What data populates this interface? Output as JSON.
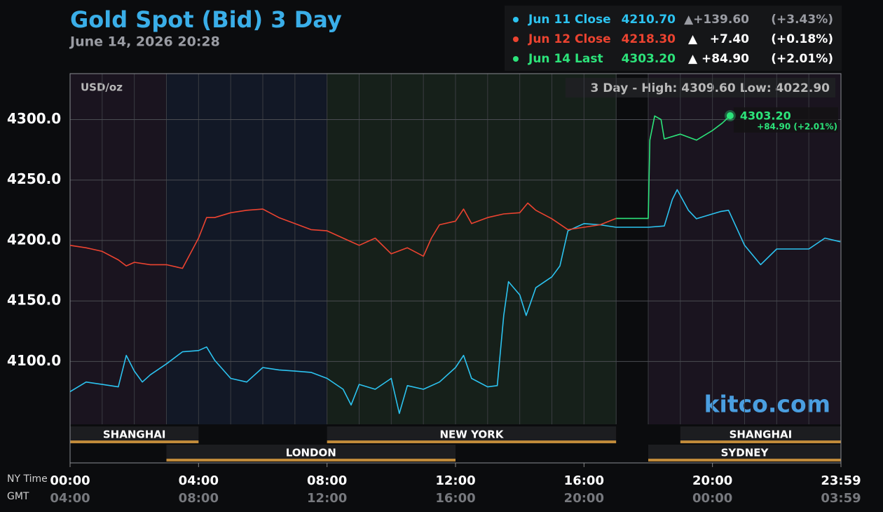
{
  "chart_data": {
    "type": "line",
    "title": "Gold Spot (Bid) 3 Day",
    "subtitle": "June 14, 2026 20:28",
    "unit_label": "USD/oz",
    "range_note": "3 Day - High: 4309.60  Low: 4022.90",
    "last_label": "4303.20",
    "last_change_label": "+84.90 (+2.01%)",
    "watermark": "kitco.com",
    "x_axis_label": "NY Time",
    "x2_axis_label": "GMT",
    "xlim": [
      0,
      24
    ],
    "xticks": [
      {
        "value": 0,
        "label": "00:00"
      },
      {
        "value": 4,
        "label": "04:00"
      },
      {
        "value": 8,
        "label": "08:00"
      },
      {
        "value": 12,
        "label": "12:00"
      },
      {
        "value": 16,
        "label": "16:00"
      },
      {
        "value": 20,
        "label": "20:00"
      },
      {
        "value": 24,
        "label": "23:59"
      }
    ],
    "x2ticks": [
      {
        "value": 0,
        "label": "04:00"
      },
      {
        "value": 4,
        "label": "08:00"
      },
      {
        "value": 8,
        "label": "12:00"
      },
      {
        "value": 12,
        "label": "16:00"
      },
      {
        "value": 16,
        "label": "20:00"
      },
      {
        "value": 20,
        "label": "00:00"
      },
      {
        "value": 24,
        "label": "03:59"
      }
    ],
    "ylim": [
      4048,
      4338
    ],
    "yticks": [
      {
        "value": 4100,
        "label": "4100.0"
      },
      {
        "value": 4150,
        "label": "4150.0"
      },
      {
        "value": 4200,
        "label": "4200.0"
      },
      {
        "value": 4250,
        "label": "4250.0"
      },
      {
        "value": 4300,
        "label": "4300.0"
      }
    ],
    "grid": true,
    "sessions_top": [
      {
        "name": "SHANGHAI",
        "start": 0,
        "end": 4
      },
      {
        "name": "NEW YORK",
        "start": 8,
        "end": 17
      },
      {
        "name": "SHANGHAI",
        "start": 19,
        "end": 24
      }
    ],
    "sessions_bottom": [
      {
        "name": "LONDON",
        "start": 3,
        "end": 12
      },
      {
        "name": "SYDNEY",
        "start": 18,
        "end": 24
      }
    ],
    "series": [
      {
        "name": "Jun 11 Close",
        "color": "#2cc3f0",
        "legend_value": "4210.70",
        "change": "▲+139.60",
        "pct": "(+3.43%)",
        "x": [
          0,
          0.5,
          1,
          1.5,
          1.75,
          2,
          2.25,
          2.5,
          3,
          3.5,
          4,
          4.25,
          4.5,
          5,
          5.5,
          6,
          6.5,
          7,
          7.5,
          8,
          8.5,
          8.75,
          9,
          9.5,
          10,
          10.25,
          10.5,
          11,
          11.5,
          12,
          12.25,
          12.5,
          13,
          13.3,
          13.5,
          13.65,
          14,
          14.2,
          14.5,
          15,
          15.25,
          15.5,
          16,
          16.5,
          17,
          18,
          18.5,
          18.75,
          18.9,
          19.25,
          19.5,
          20,
          20.25,
          20.5,
          21,
          21.5,
          22,
          22.5,
          23,
          23.5,
          23.98
        ],
        "values": [
          4075,
          4083,
          4081,
          4079,
          4105,
          4092,
          4083,
          4089,
          4098,
          4108,
          4109,
          4112,
          4101,
          4086,
          4083,
          4095,
          4093,
          4092,
          4091,
          4086,
          4077,
          4064,
          4081,
          4077,
          4086,
          4057,
          4080,
          4077,
          4083,
          4095,
          4105,
          4086,
          4079,
          4080,
          4138,
          4166,
          4155,
          4138,
          4161,
          4170,
          4179,
          4208,
          4214,
          4213,
          4211,
          4211,
          4212,
          4234,
          4242,
          4225,
          4218,
          4222,
          4224,
          4225,
          4196,
          4180,
          4193,
          4193,
          4193,
          4202,
          4199
        ]
      },
      {
        "name": "Jun 12 Close",
        "color": "#ec4330",
        "legend_value": "4218.30",
        "change": "▲   +7.40",
        "pct": "(+0.18%)",
        "x": [
          0,
          0.5,
          1,
          1.5,
          1.75,
          2,
          2.5,
          3,
          3.5,
          4,
          4.25,
          4.5,
          5,
          5.5,
          6,
          6.5,
          7,
          7.5,
          8,
          8.5,
          9,
          9.5,
          10,
          10.5,
          11,
          11.25,
          11.5,
          12,
          12.25,
          12.5,
          13,
          13.5,
          14,
          14.25,
          14.5,
          15,
          15.5,
          16,
          16.5,
          17
        ],
        "values": [
          4196,
          4194,
          4191,
          4184,
          4179,
          4182,
          4180,
          4180,
          4177,
          4202,
          4219,
          4219,
          4223,
          4225,
          4226,
          4219,
          4214,
          4209,
          4208,
          4202,
          4196,
          4202,
          4189,
          4194,
          4187,
          4202,
          4213,
          4216,
          4226,
          4214,
          4219,
          4222,
          4223,
          4231,
          4225,
          4218,
          4209,
          4211,
          4213,
          4218.3
        ]
      },
      {
        "name": "Jun 14 Last",
        "color": "#2ce37a",
        "legend_value": "4303.20",
        "change": "▲ +84.90",
        "pct": "(+2.01%)",
        "x": [
          17,
          18,
          18.05,
          18.2,
          18.4,
          18.5,
          19,
          19.5,
          20,
          20.3,
          20.55
        ],
        "values": [
          4218.3,
          4218.3,
          4283,
          4303,
          4300,
          4284,
          4288,
          4283,
          4291,
          4297,
          4303.2
        ]
      }
    ]
  }
}
